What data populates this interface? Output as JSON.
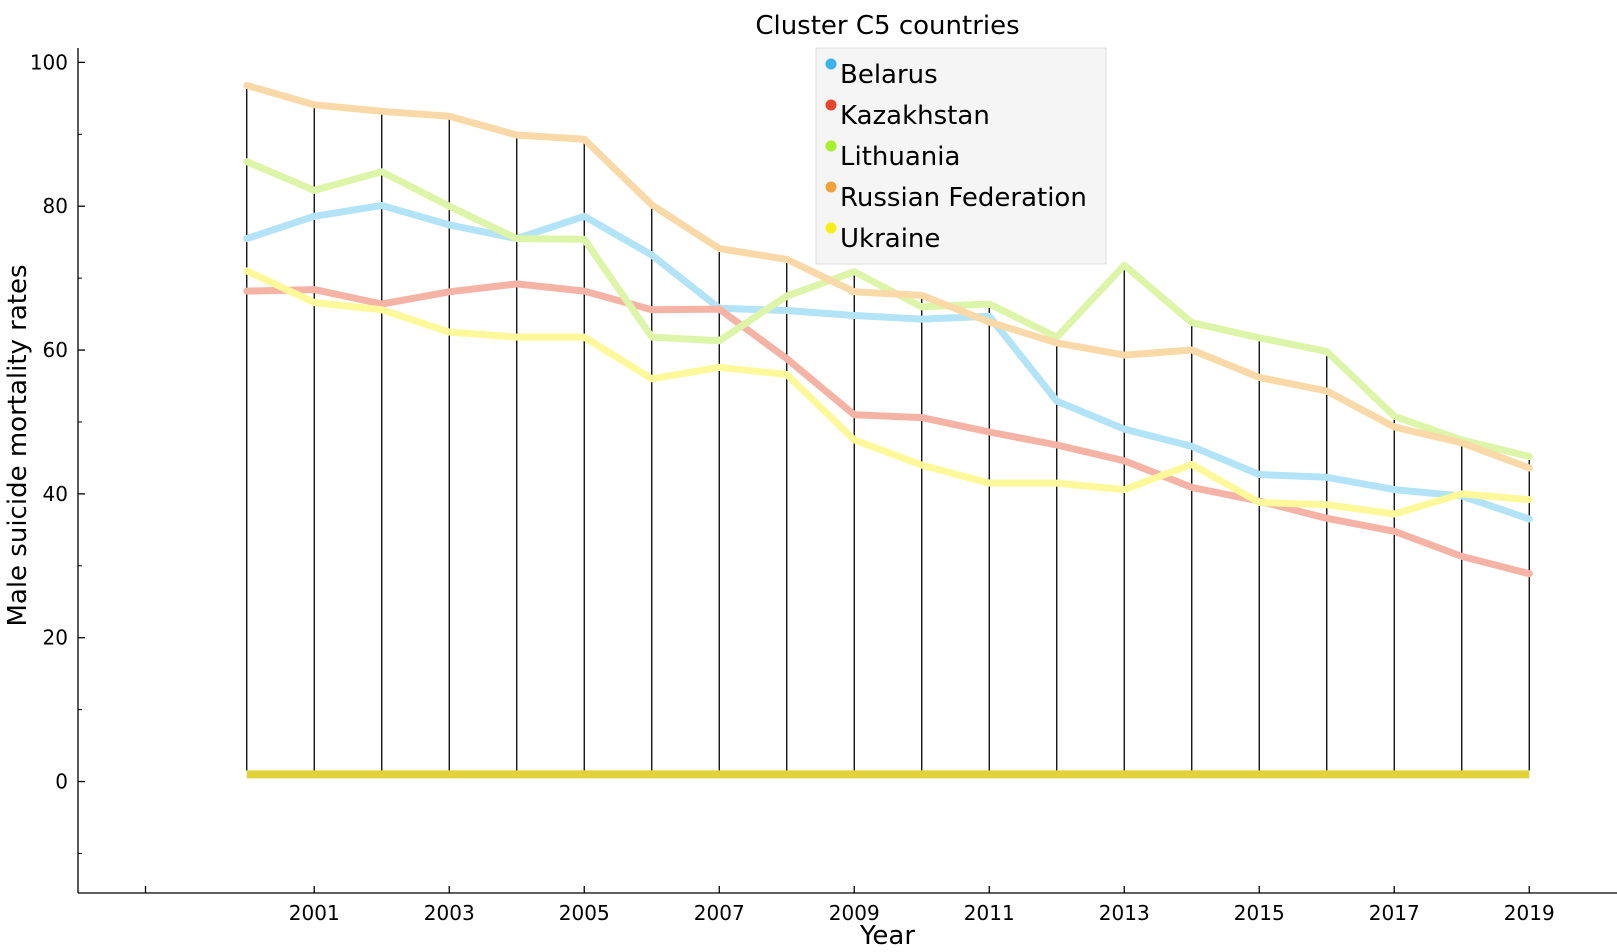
{
  "chart_data": {
    "type": "line",
    "title": "Cluster C5 countries",
    "xlabel": "Year",
    "ylabel": "Male suicide mortality rates",
    "x": [
      2000,
      2001,
      2002,
      2003,
      2004,
      2005,
      2006,
      2007,
      2008,
      2009,
      2010,
      2011,
      2012,
      2013,
      2014,
      2015,
      2016,
      2017,
      2018,
      2019
    ],
    "xlim": [
      1997.5,
      2020.3
    ],
    "ylim": [
      -15.5,
      102
    ],
    "x_ticks": [
      1998.5,
      2001,
      2003,
      2005,
      2007,
      2009,
      2011,
      2013,
      2015,
      2017,
      2019
    ],
    "x_tick_labels": [
      "",
      "2001",
      "2003",
      "2005",
      "2007",
      "2009",
      "2011",
      "2013",
      "2015",
      "2017",
      "2019"
    ],
    "y_major_ticks": [
      0,
      20,
      40,
      60,
      80,
      100
    ],
    "y_major_tick_labels": [
      "0",
      "20",
      "40",
      "60",
      "80",
      "100"
    ],
    "y_minor_ticks": [
      -10,
      10,
      30,
      50,
      70,
      90
    ],
    "grid": false,
    "legend_position": "top-center",
    "series": [
      {
        "name": "Belarus",
        "color": "#3bb3ea",
        "line_color": "#b3e3f7",
        "values": [
          75.5,
          78.6,
          80.1,
          77.4,
          75.5,
          78.6,
          73.2,
          65.8,
          65.5,
          64.8,
          64.3,
          64.7,
          52.9,
          49.0,
          46.6,
          42.7,
          42.3,
          40.6,
          39.7,
          36.5
        ]
      },
      {
        "name": "Kazakhstan",
        "color": "#e8432c",
        "line_color": "#f5b3a6",
        "values": [
          68.2,
          68.4,
          66.4,
          68.1,
          69.2,
          68.2,
          65.6,
          65.7,
          58.8,
          51.0,
          50.6,
          48.6,
          46.8,
          44.6,
          40.9,
          39.0,
          36.6,
          34.8,
          31.3,
          28.9
        ]
      },
      {
        "name": "Lithuania",
        "color": "#a6ef2a",
        "line_color": "#ddf5a8",
        "values": [
          86.2,
          82.2,
          84.8,
          80.0,
          75.5,
          75.4,
          61.8,
          61.3,
          67.5,
          70.9,
          66.0,
          66.4,
          61.8,
          71.8,
          63.8,
          61.7,
          59.8,
          50.8,
          47.5,
          45.2
        ]
      },
      {
        "name": "Russian Federation",
        "color": "#f0a13a",
        "line_color": "#f9d9a8",
        "values": [
          96.8,
          94.1,
          93.2,
          92.5,
          89.9,
          89.3,
          80.2,
          74.1,
          72.6,
          68.1,
          67.6,
          63.9,
          61.0,
          59.3,
          60.0,
          56.2,
          54.3,
          49.3,
          47.1,
          43.6
        ]
      },
      {
        "name": "Ukraine",
        "color": "#f8ef1a",
        "line_color": "#fdf99b",
        "values": [
          71.0,
          66.6,
          65.6,
          62.5,
          61.8,
          61.8,
          56.0,
          57.6,
          56.6,
          47.5,
          44.0,
          41.5,
          41.5,
          40.6,
          44.1,
          38.8,
          38.5,
          37.2,
          40.0,
          39.2
        ]
      }
    ],
    "baseline": {
      "value": 1,
      "color": "#e3d13c"
    }
  }
}
